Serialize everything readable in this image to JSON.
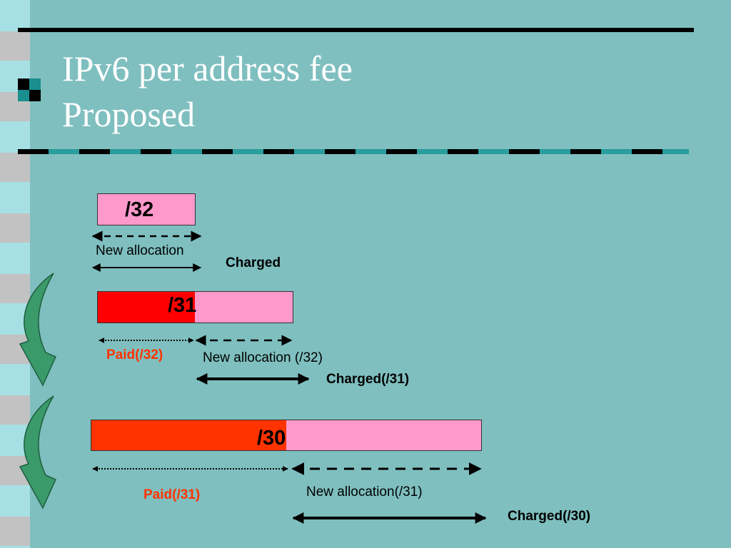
{
  "slide": {
    "title_line1": "IPv6 per address fee",
    "title_line2": "Proposed"
  },
  "rows": [
    {
      "box_label": "/32",
      "new_allocation": "New allocation",
      "charged": "Charged"
    },
    {
      "box_label": "/31",
      "paid": "Paid(/32)",
      "new_allocation": "New allocation (/32)",
      "charged": "Charged(/31)"
    },
    {
      "box_label": "/30",
      "paid": "Paid(/31)",
      "new_allocation": "New allocation(/31)",
      "charged": "Charged(/30)"
    }
  ],
  "colors": {
    "background": "#7fbfbf",
    "paid_fill": "#ff0000",
    "paid_fill_alt": "#ff3300",
    "new_fill": "#ff99cc",
    "paid_text": "#ff3300",
    "curved_arrow": "#3a9a6a"
  }
}
